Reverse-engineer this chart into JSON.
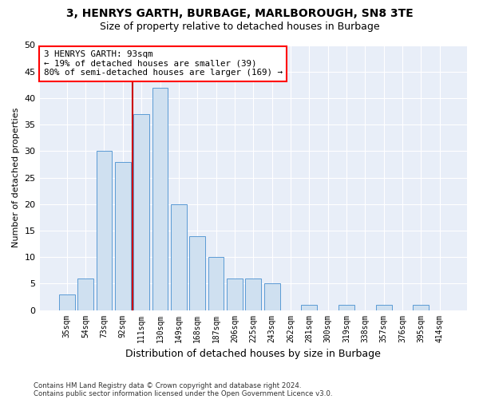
{
  "title_line1": "3, HENRYS GARTH, BURBAGE, MARLBOROUGH, SN8 3TE",
  "title_line2": "Size of property relative to detached houses in Burbage",
  "xlabel": "Distribution of detached houses by size in Burbage",
  "ylabel": "Number of detached properties",
  "bar_labels": [
    "35sqm",
    "54sqm",
    "73sqm",
    "92sqm",
    "111sqm",
    "130sqm",
    "149sqm",
    "168sqm",
    "187sqm",
    "206sqm",
    "225sqm",
    "243sqm",
    "262sqm",
    "281sqm",
    "300sqm",
    "319sqm",
    "338sqm",
    "357sqm",
    "376sqm",
    "395sqm",
    "414sqm"
  ],
  "bar_values": [
    3,
    6,
    30,
    28,
    37,
    42,
    20,
    14,
    10,
    6,
    6,
    5,
    0,
    1,
    0,
    1,
    0,
    1,
    0,
    1,
    0
  ],
  "bar_color": "#cfe0f0",
  "bar_edge_color": "#5b9bd5",
  "vline_color": "#cc0000",
  "vline_x_index": 3,
  "annotation_line1": "3 HENRYS GARTH: 93sqm",
  "annotation_line2": "← 19% of detached houses are smaller (39)",
  "annotation_line3": "80% of semi-detached houses are larger (169) →",
  "ylim": [
    0,
    50
  ],
  "yticks": [
    0,
    5,
    10,
    15,
    20,
    25,
    30,
    35,
    40,
    45,
    50
  ],
  "footer_line1": "Contains HM Land Registry data © Crown copyright and database right 2024.",
  "footer_line2": "Contains public sector information licensed under the Open Government Licence v3.0.",
  "bg_color": "#ffffff",
  "plot_bg_color": "#e8eef8"
}
